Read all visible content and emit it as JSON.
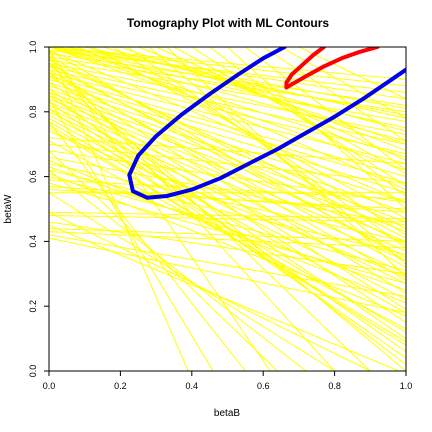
{
  "chart_data": {
    "type": "line",
    "title": "Tomography Plot with ML Contours",
    "xlabel": "betaB",
    "ylabel": "betaW",
    "xlim": [
      0,
      1
    ],
    "ylim": [
      0,
      1
    ],
    "xticks": [
      "0.0",
      "0.2",
      "0.4",
      "0.6",
      "0.8",
      "1.0"
    ],
    "yticks": [
      "0.0",
      "0.2",
      "0.4",
      "0.6",
      "0.8",
      "1.0"
    ],
    "grid": false,
    "colors": {
      "tomography": "#ffff00",
      "contour_outer": "#0000ee",
      "contour_inner": "#ff0000"
    },
    "tomography_lines": [
      [
        [
          0.0,
          0.99
        ],
        [
          1.0,
          0.86
        ]
      ],
      [
        [
          0.0,
          0.98
        ],
        [
          1.0,
          0.82
        ]
      ],
      [
        [
          0.0,
          0.97
        ],
        [
          1.0,
          0.8
        ]
      ],
      [
        [
          0.0,
          0.96
        ],
        [
          1.0,
          0.77
        ]
      ],
      [
        [
          0.0,
          0.95
        ],
        [
          1.0,
          0.73
        ]
      ],
      [
        [
          0.0,
          0.94
        ],
        [
          1.0,
          0.7
        ]
      ],
      [
        [
          0.0,
          0.93
        ],
        [
          1.0,
          0.67
        ]
      ],
      [
        [
          0.0,
          0.92
        ],
        [
          1.0,
          0.64
        ]
      ],
      [
        [
          0.0,
          0.91
        ],
        [
          1.0,
          0.6
        ]
      ],
      [
        [
          0.0,
          0.9
        ],
        [
          1.0,
          0.58
        ]
      ],
      [
        [
          0.0,
          0.89
        ],
        [
          1.0,
          0.55
        ]
      ],
      [
        [
          0.0,
          0.88
        ],
        [
          1.0,
          0.52
        ]
      ],
      [
        [
          0.0,
          0.87
        ],
        [
          1.0,
          0.49
        ]
      ],
      [
        [
          0.0,
          0.86
        ],
        [
          1.0,
          0.46
        ]
      ],
      [
        [
          0.0,
          0.85
        ],
        [
          1.0,
          0.43
        ]
      ],
      [
        [
          0.0,
          0.84
        ],
        [
          1.0,
          0.4
        ]
      ],
      [
        [
          0.0,
          0.83
        ],
        [
          1.0,
          0.37
        ]
      ],
      [
        [
          0.0,
          0.82
        ],
        [
          1.0,
          0.34
        ]
      ],
      [
        [
          0.0,
          0.81
        ],
        [
          1.0,
          0.3
        ]
      ],
      [
        [
          0.0,
          0.8
        ],
        [
          1.0,
          0.27
        ]
      ],
      [
        [
          0.0,
          0.79
        ],
        [
          1.0,
          0.22
        ]
      ],
      [
        [
          0.0,
          0.78
        ],
        [
          1.0,
          0.18
        ]
      ],
      [
        [
          0.0,
          0.77
        ],
        [
          1.0,
          0.12
        ]
      ],
      [
        [
          0.0,
          0.76
        ],
        [
          1.0,
          0.08
        ]
      ],
      [
        [
          0.0,
          1.0
        ],
        [
          1.0,
          0.9
        ]
      ],
      [
        [
          0.0,
          1.0
        ],
        [
          1.0,
          0.88
        ]
      ],
      [
        [
          0.0,
          1.0
        ],
        [
          1.0,
          0.84
        ]
      ],
      [
        [
          0.0,
          1.0
        ],
        [
          1.0,
          0.79
        ]
      ],
      [
        [
          0.0,
          1.0
        ],
        [
          1.0,
          0.75
        ]
      ],
      [
        [
          0.0,
          1.0
        ],
        [
          1.0,
          0.71
        ]
      ],
      [
        [
          0.0,
          1.0
        ],
        [
          1.0,
          0.66
        ]
      ],
      [
        [
          0.0,
          1.0
        ],
        [
          1.0,
          0.62
        ]
      ],
      [
        [
          0.05,
          1.0
        ],
        [
          1.0,
          0.81
        ]
      ],
      [
        [
          0.1,
          1.0
        ],
        [
          1.0,
          0.78
        ]
      ],
      [
        [
          0.15,
          1.0
        ],
        [
          1.0,
          0.74
        ]
      ],
      [
        [
          0.2,
          1.0
        ],
        [
          1.0,
          0.7
        ]
      ],
      [
        [
          0.25,
          1.0
        ],
        [
          1.0,
          0.68
        ]
      ],
      [
        [
          0.3,
          1.0
        ],
        [
          1.0,
          0.65
        ]
      ],
      [
        [
          0.35,
          1.0
        ],
        [
          1.0,
          0.61
        ]
      ],
      [
        [
          0.4,
          1.0
        ],
        [
          1.0,
          0.57
        ]
      ],
      [
        [
          0.45,
          1.0
        ],
        [
          1.0,
          0.54
        ]
      ],
      [
        [
          0.5,
          1.0
        ],
        [
          1.0,
          0.5
        ]
      ],
      [
        [
          0.55,
          1.0
        ],
        [
          1.0,
          0.62
        ]
      ],
      [
        [
          0.6,
          1.0
        ],
        [
          1.0,
          0.71
        ]
      ],
      [
        [
          0.65,
          1.0
        ],
        [
          1.0,
          0.78
        ]
      ],
      [
        [
          0.7,
          1.0
        ],
        [
          1.0,
          0.84
        ]
      ],
      [
        [
          0.08,
          1.0
        ],
        [
          1.0,
          0.56
        ]
      ],
      [
        [
          0.12,
          1.0
        ],
        [
          1.0,
          0.47
        ]
      ],
      [
        [
          0.18,
          1.0
        ],
        [
          1.0,
          0.42
        ]
      ],
      [
        [
          0.22,
          1.0
        ],
        [
          1.0,
          0.38
        ]
      ],
      [
        [
          0.28,
          1.0
        ],
        [
          1.0,
          0.33
        ]
      ],
      [
        [
          0.33,
          1.0
        ],
        [
          1.0,
          0.29
        ]
      ],
      [
        [
          0.0,
          0.97
        ],
        [
          1.0,
          0.41
        ]
      ],
      [
        [
          0.0,
          0.95
        ],
        [
          1.0,
          0.35
        ]
      ],
      [
        [
          0.0,
          0.93
        ],
        [
          1.0,
          0.28
        ]
      ],
      [
        [
          0.0,
          0.91
        ],
        [
          1.0,
          0.24
        ]
      ],
      [
        [
          0.0,
          0.89
        ],
        [
          1.0,
          0.19
        ]
      ],
      [
        [
          0.0,
          0.87
        ],
        [
          1.0,
          0.15
        ]
      ],
      [
        [
          0.0,
          0.85
        ],
        [
          1.0,
          0.1
        ]
      ],
      [
        [
          0.0,
          0.83
        ],
        [
          1.0,
          0.06
        ]
      ],
      [
        [
          0.0,
          0.99
        ],
        [
          1.0,
          0.52
        ]
      ],
      [
        [
          0.0,
          0.96
        ],
        [
          1.0,
          0.44
        ]
      ],
      [
        [
          0.0,
          0.94
        ],
        [
          1.0,
          0.39
        ]
      ],
      [
        [
          0.0,
          0.92
        ],
        [
          1.0,
          0.32
        ]
      ],
      [
        [
          0.0,
          0.72
        ],
        [
          1.0,
          0.64
        ]
      ],
      [
        [
          0.0,
          0.7
        ],
        [
          1.0,
          0.58
        ]
      ],
      [
        [
          0.0,
          0.68
        ],
        [
          1.0,
          0.52
        ]
      ],
      [
        [
          0.0,
          0.66
        ],
        [
          1.0,
          0.45
        ]
      ],
      [
        [
          0.0,
          0.64
        ],
        [
          1.0,
          0.4
        ]
      ],
      [
        [
          0.0,
          0.62
        ],
        [
          1.0,
          0.36
        ]
      ],
      [
        [
          0.0,
          0.6
        ],
        [
          1.0,
          0.31
        ]
      ],
      [
        [
          0.0,
          0.58
        ],
        [
          1.0,
          0.27
        ]
      ],
      [
        [
          0.0,
          0.57
        ],
        [
          1.0,
          0.49
        ]
      ],
      [
        [
          0.0,
          0.55
        ],
        [
          1.0,
          0.55
        ]
      ],
      [
        [
          0.0,
          0.49
        ],
        [
          1.0,
          0.47
        ]
      ],
      [
        [
          0.0,
          0.48
        ],
        [
          1.0,
          0.46
        ]
      ],
      [
        [
          0.0,
          0.44
        ],
        [
          1.0,
          0.4
        ]
      ],
      [
        [
          0.0,
          0.43
        ],
        [
          1.0,
          0.38
        ]
      ],
      [
        [
          0.0,
          0.59
        ],
        [
          1.0,
          0.53
        ]
      ],
      [
        [
          0.0,
          0.56
        ],
        [
          1.0,
          0.5
        ]
      ],
      [
        [
          0.0,
          0.99
        ],
        [
          0.39,
          0.0
        ]
      ],
      [
        [
          0.0,
          0.84
        ],
        [
          0.46,
          0.0
        ]
      ],
      [
        [
          0.0,
          0.77
        ],
        [
          0.55,
          0.0
        ]
      ],
      [
        [
          0.0,
          0.68
        ],
        [
          0.64,
          0.0
        ]
      ],
      [
        [
          0.0,
          0.62
        ],
        [
          0.72,
          0.0
        ]
      ],
      [
        [
          0.0,
          0.55
        ],
        [
          0.8,
          0.0
        ]
      ],
      [
        [
          0.0,
          0.49
        ],
        [
          0.9,
          0.0
        ]
      ],
      [
        [
          0.0,
          0.45
        ],
        [
          0.98,
          0.0
        ]
      ],
      [
        [
          0.0,
          0.86
        ],
        [
          1.0,
          0.02
        ]
      ],
      [
        [
          0.0,
          0.81
        ],
        [
          1.0,
          0.04
        ]
      ],
      [
        [
          0.0,
          0.75
        ],
        [
          1.0,
          0.09
        ]
      ],
      [
        [
          0.0,
          0.71
        ],
        [
          1.0,
          0.13
        ]
      ],
      [
        [
          0.0,
          0.99
        ],
        [
          0.62,
          0.0
        ]
      ],
      [
        [
          0.0,
          0.97
        ],
        [
          0.8,
          0.0
        ]
      ],
      [
        [
          0.0,
          0.95
        ],
        [
          0.9,
          0.0
        ]
      ],
      [
        [
          0.0,
          0.92
        ],
        [
          1.0,
          0.0
        ]
      ],
      [
        [
          0.0,
          0.65
        ],
        [
          1.0,
          0.21
        ]
      ],
      [
        [
          0.0,
          0.63
        ],
        [
          1.0,
          0.25
        ]
      ],
      [
        [
          0.0,
          0.61
        ],
        [
          1.0,
          0.17
        ]
      ],
      [
        [
          0.0,
          0.74
        ],
        [
          1.0,
          0.29
        ]
      ],
      [
        [
          0.0,
          0.46
        ],
        [
          1.0,
          0.3
        ]
      ],
      [
        [
          0.0,
          0.42
        ],
        [
          1.0,
          0.23
        ]
      ],
      [
        [
          0.0,
          0.41
        ],
        [
          1.0,
          0.18
        ]
      ],
      [
        [
          0.0,
          0.99
        ],
        [
          1.0,
          0.34
        ]
      ]
    ],
    "contours": [
      {
        "level": "outer",
        "points": [
          [
            0.66,
            1.0
          ],
          [
            0.6,
            0.965
          ],
          [
            0.53,
            0.915
          ],
          [
            0.45,
            0.855
          ],
          [
            0.37,
            0.79
          ],
          [
            0.3,
            0.725
          ],
          [
            0.25,
            0.665
          ],
          [
            0.225,
            0.605
          ],
          [
            0.235,
            0.555
          ],
          [
            0.275,
            0.535
          ],
          [
            0.33,
            0.54
          ],
          [
            0.4,
            0.56
          ],
          [
            0.48,
            0.595
          ],
          [
            0.56,
            0.64
          ],
          [
            0.64,
            0.685
          ],
          [
            0.72,
            0.735
          ],
          [
            0.8,
            0.785
          ],
          [
            0.88,
            0.84
          ],
          [
            0.94,
            0.885
          ],
          [
            1.0,
            0.93
          ]
        ]
      },
      {
        "level": "inner",
        "points": [
          [
            0.92,
            1.0
          ],
          [
            0.87,
            0.985
          ],
          [
            0.82,
            0.965
          ],
          [
            0.77,
            0.94
          ],
          [
            0.72,
            0.91
          ],
          [
            0.68,
            0.885
          ],
          [
            0.665,
            0.875
          ],
          [
            0.665,
            0.89
          ],
          [
            0.68,
            0.915
          ],
          [
            0.71,
            0.945
          ],
          [
            0.74,
            0.975
          ],
          [
            0.77,
            1.0
          ]
        ]
      }
    ]
  }
}
